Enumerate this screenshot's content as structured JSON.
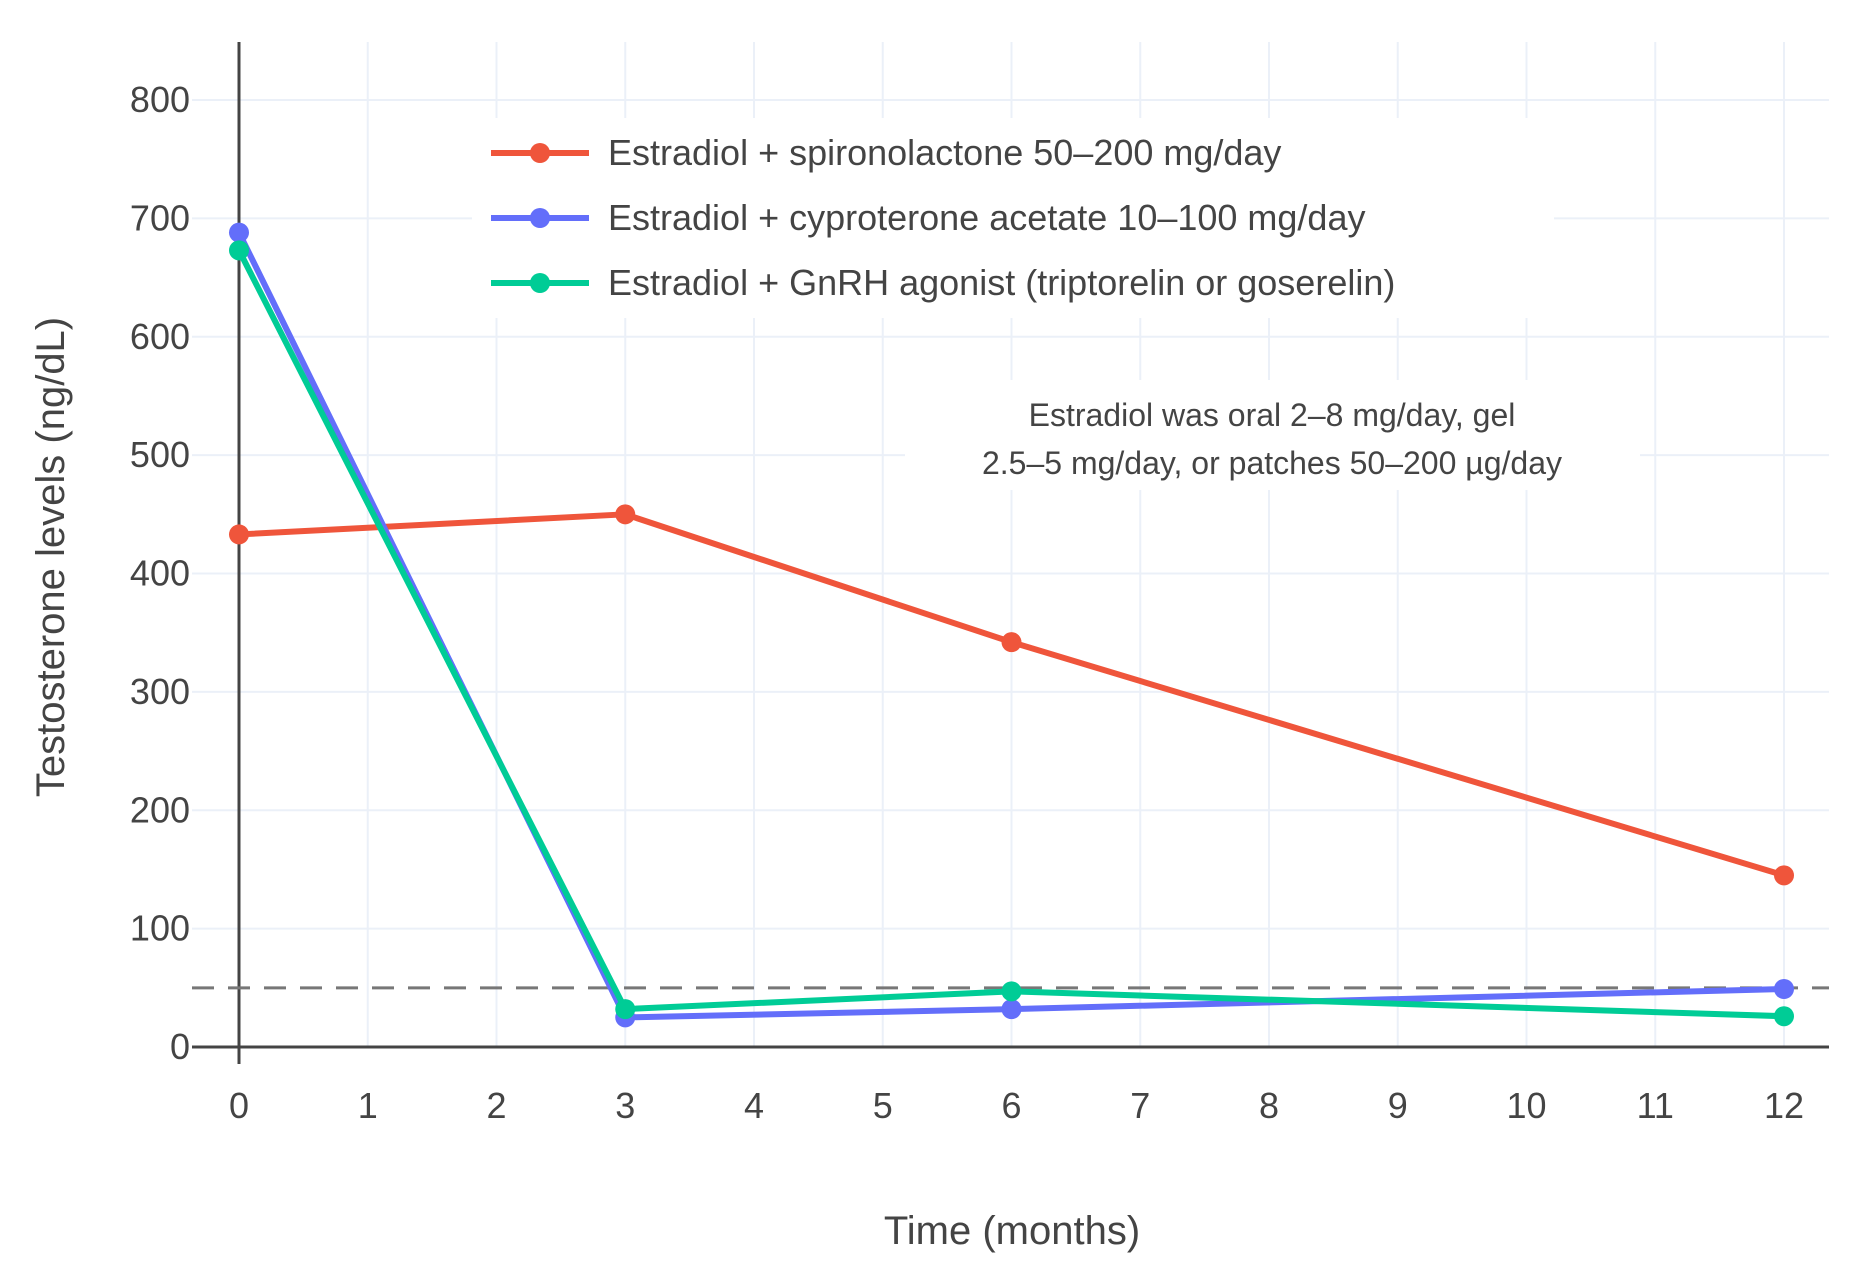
{
  "chart_data": {
    "type": "line",
    "title": "",
    "xlabel": "Time (months)",
    "ylabel": "Testosterone levels (ng/dL)",
    "xlim": [
      -0.35,
      12.35
    ],
    "ylim": [
      -10,
      850
    ],
    "xticks": [
      0,
      1,
      2,
      3,
      4,
      5,
      6,
      7,
      8,
      9,
      10,
      11,
      12
    ],
    "yticks": [
      0,
      100,
      200,
      300,
      400,
      500,
      600,
      700,
      800
    ],
    "grid": true,
    "legend_position": "top-center",
    "x": [
      0,
      3,
      6,
      12
    ],
    "series": [
      {
        "name": "Estradiol + spironolactone 50–200 mg/day",
        "color": "#EF553B",
        "values": [
          433,
          450,
          342,
          145
        ]
      },
      {
        "name": "Estradiol + cyproterone acetate 10–100 mg/day",
        "color": "#636EFA",
        "values": [
          688,
          25,
          32,
          49
        ]
      },
      {
        "name": "Estradiol + GnRH agonist (triptorelin or goserelin)",
        "color": "#00CC96",
        "values": [
          673,
          32,
          47,
          26
        ]
      }
    ],
    "reference_line": {
      "y": 50,
      "style": "dashed",
      "color": "#777777"
    },
    "annotation": [
      "Estradiol was oral 2–8 mg/day, gel",
      "2.5–5 mg/day, or patches 50–200 µg/day"
    ]
  }
}
